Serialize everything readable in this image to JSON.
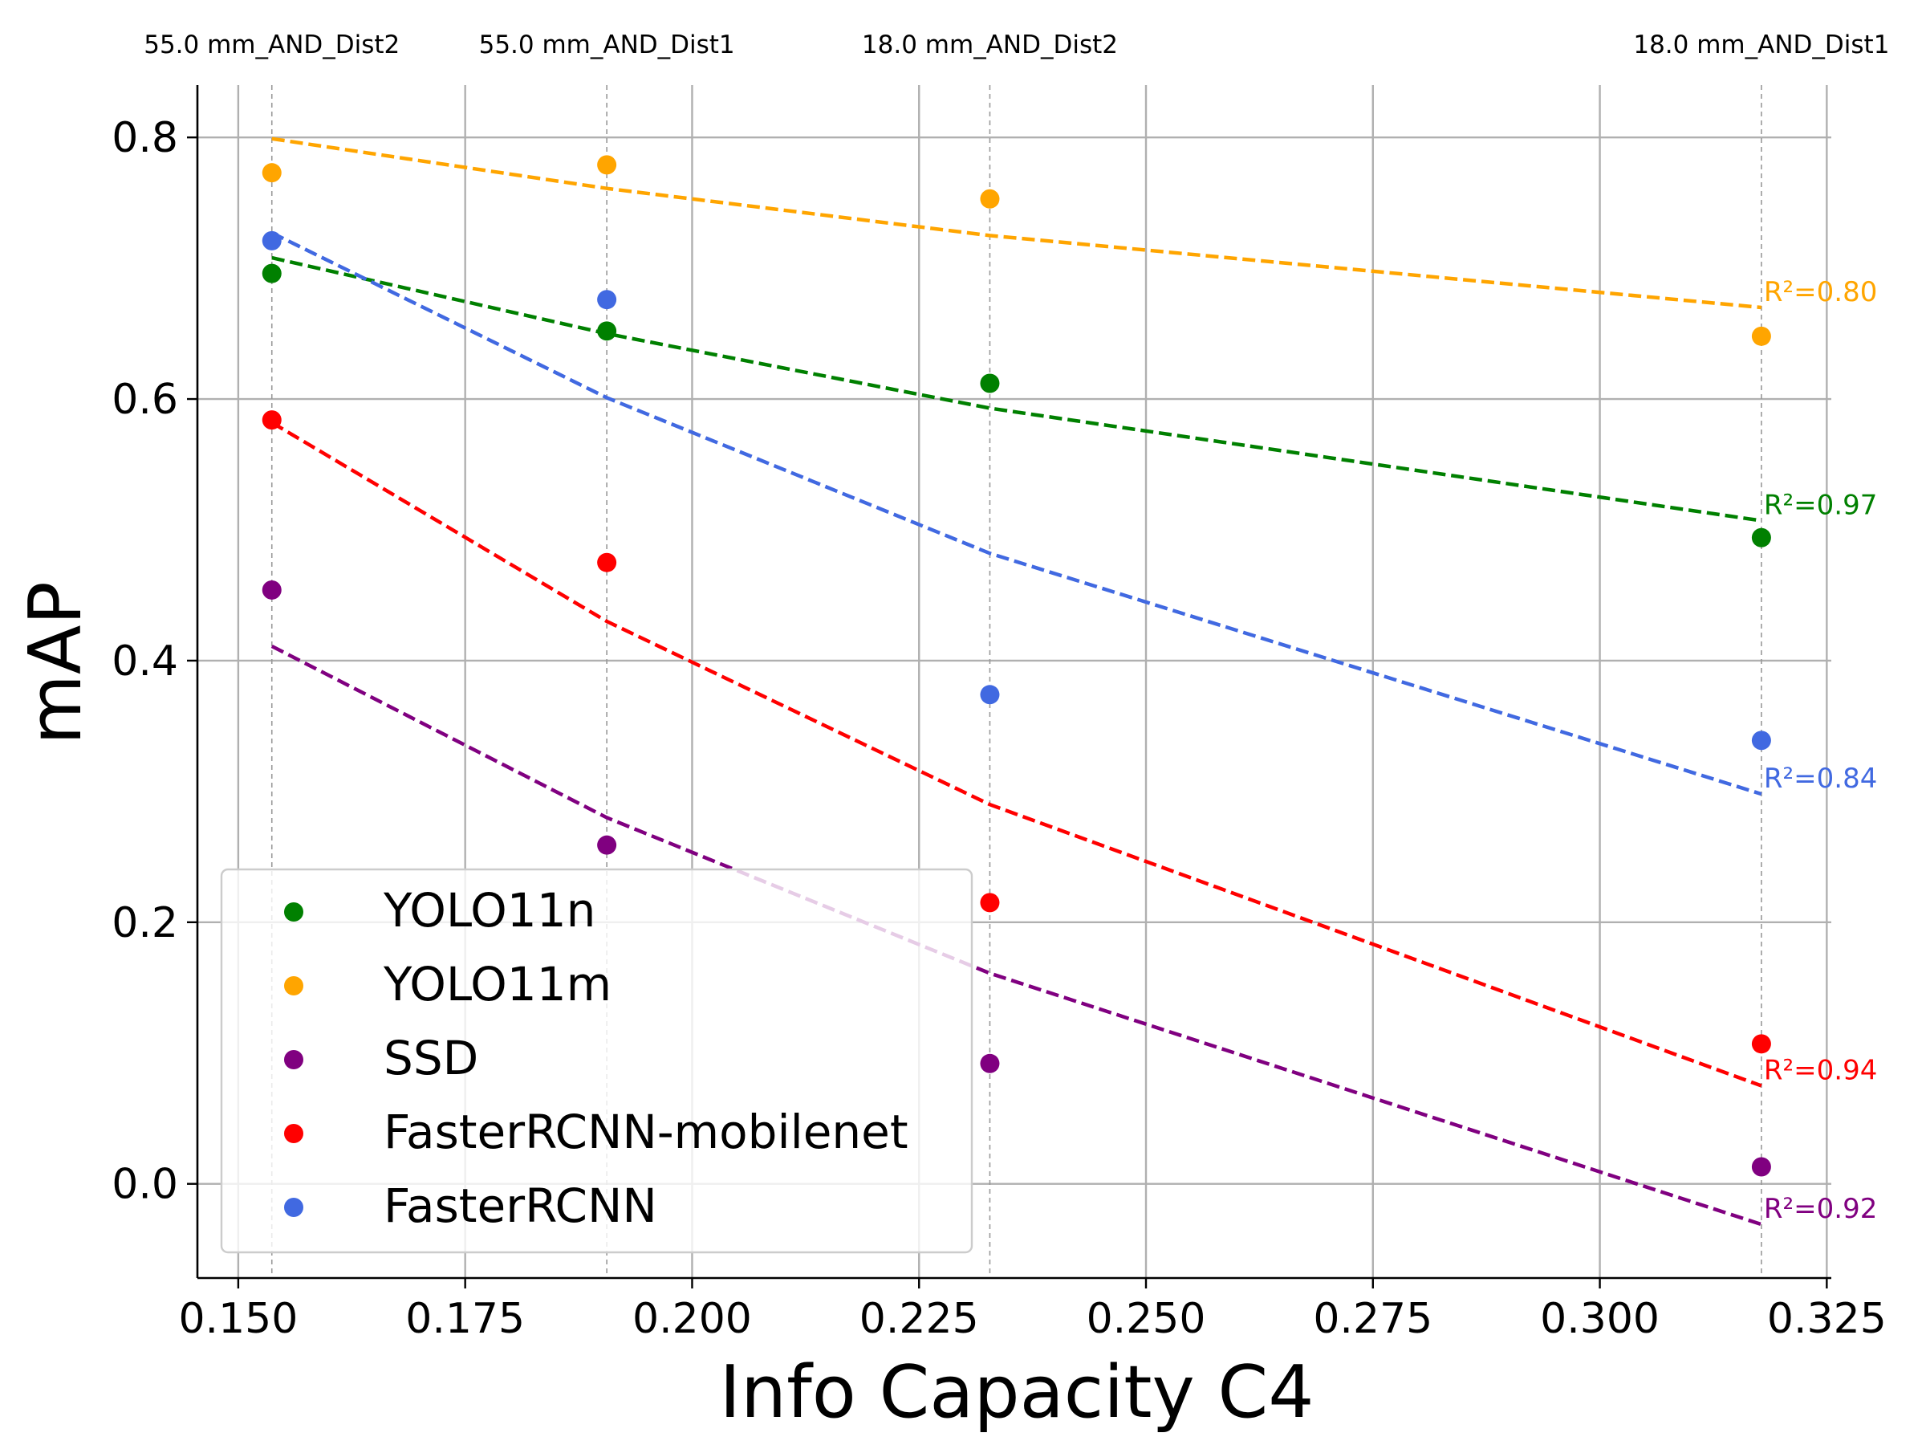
{
  "chart_data": {
    "type": "scatter",
    "title": "",
    "xlabel": "Info Capacity C4",
    "ylabel": "mAP",
    "xlim": [
      0.1455,
      0.3255
    ],
    "ylim": [
      -0.072,
      0.84
    ],
    "xticks": [
      0.15,
      0.175,
      0.2,
      0.225,
      0.25,
      0.275,
      0.3,
      0.325
    ],
    "xtick_labels": [
      "0.150",
      "0.175",
      "0.200",
      "0.225",
      "0.250",
      "0.275",
      "0.300",
      "0.325"
    ],
    "yticks": [
      0.0,
      0.2,
      0.4,
      0.6,
      0.8
    ],
    "ytick_labels": [
      "0.0",
      "0.2",
      "0.4",
      "0.6",
      "0.8"
    ],
    "grid": true,
    "legend_position": "lower-left",
    "top_markers": [
      {
        "x": 0.1537,
        "label": "55.0 mm_AND_Dist2"
      },
      {
        "x": 0.1906,
        "label": "55.0 mm_AND_Dist1"
      },
      {
        "x": 0.2328,
        "label": "18.0 mm_AND_Dist2"
      },
      {
        "x": 0.3178,
        "label": "18.0 mm_AND_Dist1"
      }
    ],
    "x": [
      0.1537,
      0.1906,
      0.2328,
      0.3178
    ],
    "series": [
      {
        "name": "YOLO11n",
        "color": "#008000",
        "values": [
          0.696,
          0.652,
          0.612,
          0.494
        ],
        "fit": [
          0.708,
          0.65,
          0.593,
          0.507
        ],
        "r2": "R²=0.97"
      },
      {
        "name": "YOLO11m",
        "color": "#FFA500",
        "values": [
          0.773,
          0.779,
          0.753,
          0.648
        ],
        "fit": [
          0.799,
          0.761,
          0.725,
          0.67
        ],
        "r2": "R²=0.80"
      },
      {
        "name": "SSD",
        "color": "#800080",
        "values": [
          0.454,
          0.259,
          0.092,
          0.013
        ],
        "fit": [
          0.411,
          0.28,
          0.161,
          -0.031
        ],
        "r2": "R²=0.92"
      },
      {
        "name": "FasterRCNN-mobilenet",
        "color": "#FF0000",
        "values": [
          0.584,
          0.475,
          0.215,
          0.107
        ],
        "fit": [
          0.582,
          0.43,
          0.29,
          0.075
        ],
        "r2": "R²=0.94"
      },
      {
        "name": "FasterRCNN",
        "color": "#4169E1",
        "values": [
          0.721,
          0.676,
          0.374,
          0.339
        ],
        "fit": [
          0.727,
          0.601,
          0.482,
          0.298
        ],
        "r2": "R²=0.84"
      }
    ]
  }
}
